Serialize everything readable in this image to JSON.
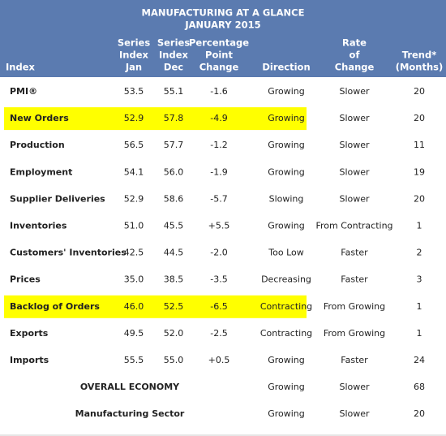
{
  "header": {
    "title": [
      "MANUFACTURING AT A GLANCE",
      "JANUARY 2015"
    ],
    "columns": [
      [
        "Index"
      ],
      [
        "Series",
        "Index",
        "Jan"
      ],
      [
        "Series",
        "Index",
        "Dec"
      ],
      [
        "Percentage",
        "Point",
        "Change"
      ],
      [
        "Direction"
      ],
      [
        "Rate",
        "of",
        "Change"
      ],
      [
        "Trend*",
        "(Months)"
      ]
    ]
  },
  "table": {
    "rows": [
      [
        "PMI®",
        "53.5",
        "55.1",
        "-1.6",
        "Growing",
        "Slower",
        "20"
      ],
      [
        "New Orders",
        "52.9",
        "57.8",
        "-4.9",
        "Growing",
        "Slower",
        "20"
      ],
      [
        "Production",
        "56.5",
        "57.7",
        "-1.2",
        "Growing",
        "Slower",
        "11"
      ],
      [
        "Employment",
        "54.1",
        "56.0",
        "-1.9",
        "Growing",
        "Slower",
        "19"
      ],
      [
        "Supplier Deliveries",
        "52.9",
        "58.6",
        "-5.7",
        "Slowing",
        "Slower",
        "20"
      ],
      [
        "Inventories",
        "51.0",
        "45.5",
        "+5.5",
        "Growing",
        "From Contracting",
        "1"
      ],
      [
        "Customers' Inventories",
        "42.5",
        "44.5",
        "-2.0",
        "Too Low",
        "Faster",
        "2"
      ],
      [
        "Prices",
        "35.0",
        "38.5",
        "-3.5",
        "Decreasing",
        "Faster",
        "3"
      ],
      [
        "Backlog of Orders",
        "46.0",
        "52.5",
        "-6.5",
        "Contracting",
        "From Growing",
        "1"
      ],
      [
        "Exports",
        "49.5",
        "52.0",
        "-2.5",
        "Contracting",
        "From Growing",
        "1"
      ],
      [
        "Imports",
        "55.5",
        "55.0",
        "+0.5",
        "Growing",
        "Faster",
        "24"
      ]
    ],
    "highlighted_rows": [
      1,
      8
    ],
    "summary_rows": [
      [
        "OVERALL ECONOMY",
        "Growing",
        "Slower",
        "68"
      ],
      [
        "Manufacturing Sector",
        "Growing",
        "Slower",
        "20"
      ]
    ]
  }
}
